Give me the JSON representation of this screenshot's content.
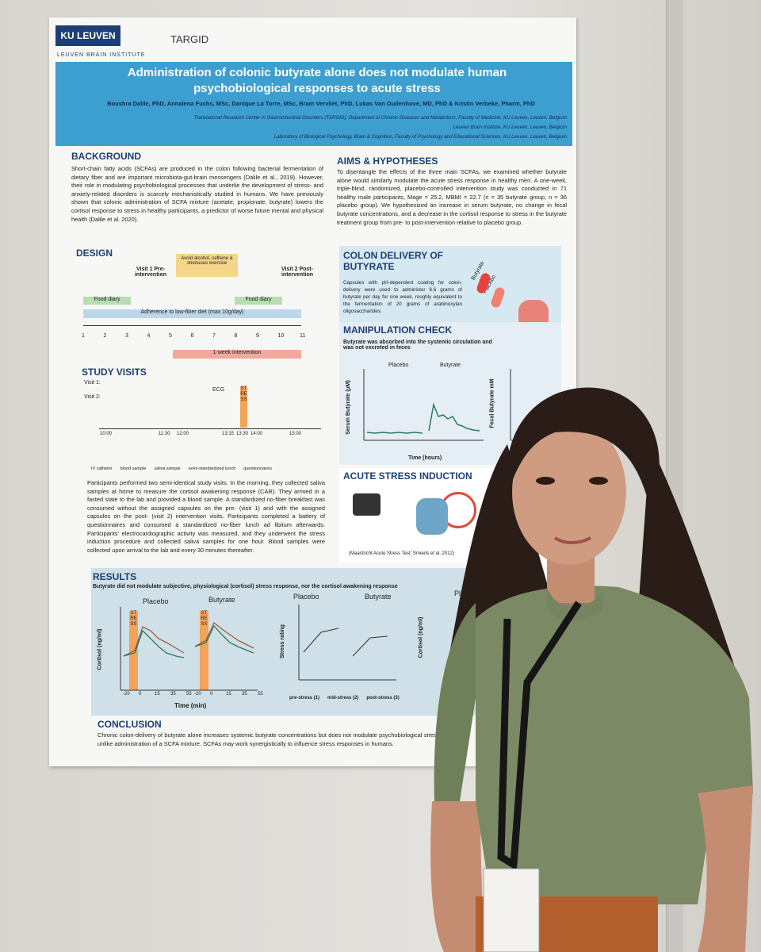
{
  "poster": {
    "logos": {
      "university": "KU LEUVEN",
      "group": "TARGID",
      "institute": "LEUVEN BRAIN INSTITUTE"
    },
    "title": "Administration of colonic butyrate alone does not modulate human psychobiological responses to acute stress",
    "authors": "Boushra Dalile, PhD, Annalena Fuchs, MSc, Danique La Torre, MSc, Bram Vervliet, PhD, Lukas Van Oudenhove, MD, PhD & Kristin Verbeke, Pharm, PhD",
    "affiliations": [
      "Translational Research Center in Gastrointestinal Disorders (TARGID), Department of Chronic Diseases and Metabolism, Faculty of Medicine, KU Leuven, Leuven, Belgium",
      "Leuven Brain Institute, KU Leuven, Leuven, Belgium",
      "Laboratory of Biological Psychology, Brain & Cognition, Faculty of Psychology and Educational Sciences, KU Leuven, Leuven, Belgium"
    ],
    "background": {
      "heading": "BACKGROUND",
      "text": "Short-chain fatty acids (SCFAs) are produced in the colon following bacterial fermentation of dietary fiber and are important microbiota-gut-brain messengers (Dalile et al., 2019). However, their role in modulating psychobiological processes that underlie the development of stress- and anxiety-related disorders is scarcely mechanistically studied in humans. We have previously shown that colonic administration of SCFA mixture (acetate, propionate, butyrate) lowers the cortisol response to stress in healthy participants, a predictor of worse future mental and physical health (Dalile et al. 2020)."
    },
    "aims": {
      "heading": "AIMS & HYPOTHESES",
      "text": "To disentangle the effects of the three main SCFAs, we examined whether butyrate alone would similarly modulate the acute stress response in healthy men. A one-week, triple-blind, randomized, placebo-controlled intervention study was conducted in 71 healthy male participants, Mage = 25.2, MBMI = 22.7 (n = 35 butyrate group, n = 36 placebo group). We hypothesized an increase in serum butyrate, no change in fecal butyrate concentrations, and a decrease in the cortisol response to stress in the butyrate treatment group from pre- to post-intervention relative to placebo group."
    },
    "design": {
      "heading": "DESIGN",
      "visit1": "Visit 1 Pre-intervention",
      "visit2": "Visit 2 Post-intervention",
      "avoid": "Avoid alcohol, caffeine & strenuous exercise",
      "food_diary": "Food diary",
      "adherence": "Adherence to low-fiber diet (max 10g/day)",
      "days": [
        "1",
        "2",
        "3",
        "4",
        "5",
        "6",
        "7",
        "8",
        "9",
        "10",
        "11"
      ],
      "intervention": "1-week intervention"
    },
    "colon": {
      "heading": "COLON DELIVERY OF BUTYRATE",
      "text": "Capsules with pH-dependent coating for colon-delivery were used to administer 6.6 grams of butyrate per day for one week, roughly equivalent to the fermentation of 20 grams of arabinoxylan oligosaccharides.",
      "labels": [
        "Butyrate",
        "Placebo"
      ]
    },
    "manipulation": {
      "heading": "MANIPULATION CHECK",
      "subtitle": "Butyrate was absorbed into the systemic circulation and was not excreted in feces",
      "groups": [
        "Placebo",
        "Butyrate"
      ],
      "y_label": "Serum Butyrate (µM)",
      "x_label": "Time (hours)",
      "y2_label": "Fecal Butyrate mM"
    },
    "visits": {
      "heading": "STUDY VISITS",
      "rows": [
        "Visit 1:",
        "Visit 2:"
      ],
      "ecg": "ECG",
      "stress": "STRESS",
      "times": [
        "10:00",
        "11:30",
        "12:00",
        "13:15",
        "13:30",
        "14:00",
        "15:00"
      ],
      "legend": [
        "IV catheter",
        "blood sample",
        "saliva sample",
        "semi-standardized lunch",
        "questionnaires"
      ],
      "text": "Participants performed two semi-identical study visits. In the morning, they collected saliva samples at home to measure the cortisol awakening response (CAR). They arrived in a fasted state to the lab and provided a blood sample. A standardized no-fiber breakfast was consumed without the assigned capsules on the pre- (visit 1) and with the assigned capsules on the post- (visit 2) intervention visits. Participants completed a battery of questionnaires and consumed a standardized no-fiber lunch ad libitum afterwards. Participants' electrocardiographic activity was measured, and they underwent the stress induction procedure and collected saliva samples for one hour. Blood samples were collected upon arrival to the lab and every 30 minutes thereafter."
    },
    "stress": {
      "heading": "ACUTE STRESS INDUCTION",
      "note": "(Maastricht Acute Stress Test; Smeets et al. 2012)"
    },
    "results": {
      "heading": "RESULTS",
      "subtitle": "Butyrate did not modulate subjective, physiological (cortisol) stress response, nor the cortisol awakening response",
      "groups": [
        "Placebo",
        "Butyrate"
      ],
      "stress_tag": "STRESS",
      "y_label": "Cortisol (ng/ml)",
      "x_label": "Time (min)",
      "x_ticks": [
        "-20",
        "0",
        "15",
        "35",
        "55",
        "-20",
        "0",
        "15",
        "35",
        "55"
      ],
      "rating_label": "Stress rating",
      "rating_ticks": [
        "pre-stress (1)",
        "mid-stress (2)",
        "post-stress (3)"
      ],
      "car_group": "Placebo",
      "car_label": "Cortisol (ng/ml)"
    },
    "conclusion": {
      "heading": "CONCLUSION",
      "text": "Chronic colon-delivery of butyrate alone increases systemic butyrate concentrations but does not modulate psychobiological stress responses, unlike administration of a SCFA mixture. SCFAs may work synergistically to influence stress responses in humans."
    }
  }
}
